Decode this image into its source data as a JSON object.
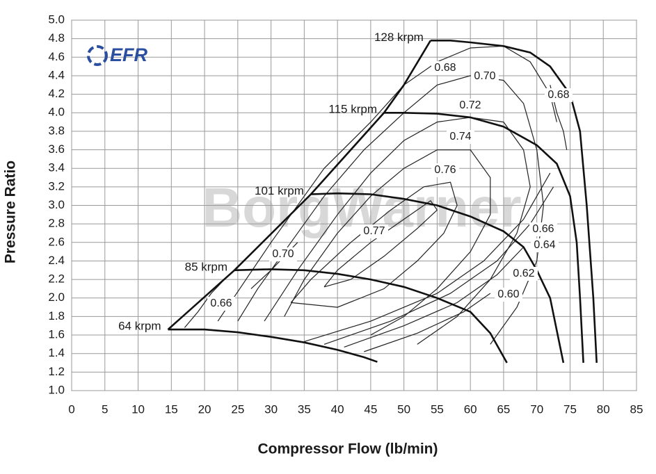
{
  "chart_data": {
    "type": "line",
    "xlabel": "Compressor Flow (lb/min)",
    "ylabel": "Pressure Ratio",
    "logo": "EFR",
    "watermark": "BorgWarner",
    "xlim": [
      0,
      85
    ],
    "ylim": [
      1.0,
      5.0
    ],
    "xticks": [
      0,
      5,
      10,
      15,
      20,
      25,
      30,
      35,
      40,
      45,
      50,
      55,
      60,
      65,
      70,
      75,
      80,
      85
    ],
    "yticks": [
      {
        "value": 1.0,
        "label": "1.0"
      },
      {
        "value": 1.2,
        "label": "1.2"
      },
      {
        "value": 1.4,
        "label": "1.4"
      },
      {
        "value": 1.6,
        "label": "1.6"
      },
      {
        "value": 1.8,
        "label": "1.8"
      },
      {
        "value": 2.0,
        "label": "2.0"
      },
      {
        "value": 2.2,
        "label": "2.2"
      },
      {
        "value": 2.4,
        "label": "2.4"
      },
      {
        "value": 2.6,
        "label": "2.6"
      },
      {
        "value": 2.8,
        "label": "2.8"
      },
      {
        "value": 3.0,
        "label": "3.0"
      },
      {
        "value": 3.2,
        "label": "3.2"
      },
      {
        "value": 3.4,
        "label": "3.4"
      },
      {
        "value": 3.6,
        "label": "3.6"
      },
      {
        "value": 3.8,
        "label": "3.8"
      },
      {
        "value": 4.0,
        "label": "4.0"
      },
      {
        "value": 4.2,
        "label": "4.2"
      },
      {
        "value": 4.4,
        "label": "4.4"
      },
      {
        "value": 4.6,
        "label": "4.6"
      },
      {
        "value": 4.8,
        "label": "4.8"
      },
      {
        "value": 5.0,
        "label": "5.0"
      }
    ],
    "grid": true,
    "series": [
      {
        "name": "64 krpm",
        "color": "#111111",
        "x": [
          14.5,
          20,
          25,
          30,
          35,
          40,
          44,
          46
        ],
        "values": [
          1.66,
          1.66,
          1.63,
          1.58,
          1.52,
          1.44,
          1.36,
          1.31
        ]
      },
      {
        "name": "85 krpm",
        "color": "#111111",
        "x": [
          24.5,
          30,
          35,
          40,
          45,
          50,
          55,
          60,
          63,
          65.5
        ],
        "values": [
          2.3,
          2.31,
          2.3,
          2.26,
          2.2,
          2.12,
          2.0,
          1.85,
          1.62,
          1.3
        ]
      },
      {
        "name": "101 krpm",
        "color": "#111111",
        "x": [
          36,
          40,
          45,
          50,
          55,
          60,
          65,
          68,
          70,
          72,
          74
        ],
        "values": [
          3.12,
          3.13,
          3.12,
          3.07,
          3.0,
          2.88,
          2.72,
          2.55,
          2.3,
          2.0,
          1.3
        ]
      },
      {
        "name": "115 krpm",
        "color": "#111111",
        "x": [
          47,
          50,
          55,
          60,
          65,
          70,
          73,
          75,
          76,
          76.5,
          77
        ],
        "values": [
          4.0,
          4.0,
          3.99,
          3.95,
          3.85,
          3.65,
          3.45,
          3.1,
          2.6,
          2.0,
          1.3
        ]
      },
      {
        "name": "128 krpm",
        "color": "#111111",
        "x": [
          54,
          57,
          60,
          65,
          69,
          72,
          75,
          76.5,
          77.5,
          78.5,
          79
        ],
        "values": [
          4.78,
          4.78,
          4.76,
          4.72,
          4.65,
          4.5,
          4.2,
          3.8,
          3.0,
          2.0,
          1.3
        ]
      }
    ],
    "surge_line": {
      "color": "#111111",
      "x": [
        14.5,
        24.5,
        36,
        47,
        50,
        54
      ],
      "values": [
        1.66,
        2.3,
        3.12,
        4.0,
        4.3,
        4.78
      ]
    },
    "efficiency": [
      {
        "label": "0.77",
        "x": [
          38,
          40,
          45,
          50,
          54,
          55,
          52,
          47,
          42,
          38
        ],
        "values": [
          2.12,
          2.3,
          2.6,
          2.85,
          3.05,
          2.95,
          2.75,
          2.45,
          2.2,
          2.12
        ]
      },
      {
        "label": "0.76",
        "x": [
          33,
          36,
          42,
          48,
          53,
          57,
          58,
          56,
          52,
          47,
          40,
          33
        ],
        "values": [
          1.95,
          2.2,
          2.6,
          2.95,
          3.2,
          3.25,
          3.0,
          2.7,
          2.4,
          2.1,
          1.9,
          1.95
        ]
      },
      {
        "label": "0.74",
        "x": [
          32,
          35,
          40,
          45,
          50,
          55,
          60,
          63,
          63,
          60,
          55,
          50,
          45
        ],
        "values": [
          1.8,
          2.2,
          2.7,
          3.1,
          3.4,
          3.6,
          3.6,
          3.3,
          2.9,
          2.5,
          2.1,
          1.8,
          1.6
        ]
      },
      {
        "label": "0.72",
        "x": [
          29,
          34,
          40,
          45,
          50,
          55,
          60,
          65,
          68,
          69,
          67,
          63,
          58,
          52
        ],
        "values": [
          1.75,
          2.3,
          2.9,
          3.35,
          3.7,
          3.9,
          3.95,
          3.9,
          3.6,
          3.2,
          2.7,
          2.2,
          1.8,
          1.5
        ]
      },
      {
        "label": "0.70",
        "x": [
          25,
          28,
          33,
          38,
          44,
          50,
          55,
          60,
          65,
          68,
          70,
          71,
          70,
          67,
          63
        ],
        "values": [
          1.75,
          2.1,
          2.6,
          3.1,
          3.6,
          4.0,
          4.3,
          4.4,
          4.35,
          4.1,
          3.6,
          3.0,
          2.4,
          1.9,
          1.5
        ]
      },
      {
        "label": "0.68",
        "x": [
          22,
          30,
          38,
          45,
          50,
          55,
          60,
          65,
          69,
          72,
          73
        ],
        "values": [
          1.75,
          2.6,
          3.4,
          3.9,
          4.3,
          4.55,
          4.7,
          4.72,
          4.55,
          4.2,
          3.9
        ]
      },
      {
        "label": "0.68",
        "x": [
          72,
          73,
          74,
          74.5
        ],
        "values": [
          4.3,
          4.0,
          3.8,
          3.6
        ]
      },
      {
        "label": "0.70",
        "x": [
          27,
          30,
          32,
          34
        ],
        "values": [
          2.1,
          2.3,
          2.45,
          2.6
        ]
      },
      {
        "label": "0.66",
        "x": [
          17,
          19,
          21,
          23,
          24.5
        ],
        "values": [
          1.68,
          1.85,
          2.05,
          2.2,
          2.3
        ]
      },
      {
        "label": "0.66",
        "x": [
          35,
          45,
          55,
          62,
          68,
          72
        ],
        "values": [
          1.53,
          1.75,
          2.05,
          2.4,
          2.85,
          3.35
        ]
      },
      {
        "label": "0.64",
        "x": [
          38,
          48,
          57,
          64,
          69,
          72.5
        ],
        "values": [
          1.5,
          1.75,
          2.05,
          2.4,
          2.8,
          3.2
        ]
      },
      {
        "label": "0.62",
        "x": [
          41,
          50,
          58,
          64,
          68
        ],
        "values": [
          1.47,
          1.7,
          1.95,
          2.25,
          2.55
        ]
      },
      {
        "label": "0.60",
        "x": [
          44,
          52,
          59,
          63
        ],
        "values": [
          1.42,
          1.62,
          1.85,
          2.05
        ]
      }
    ]
  }
}
